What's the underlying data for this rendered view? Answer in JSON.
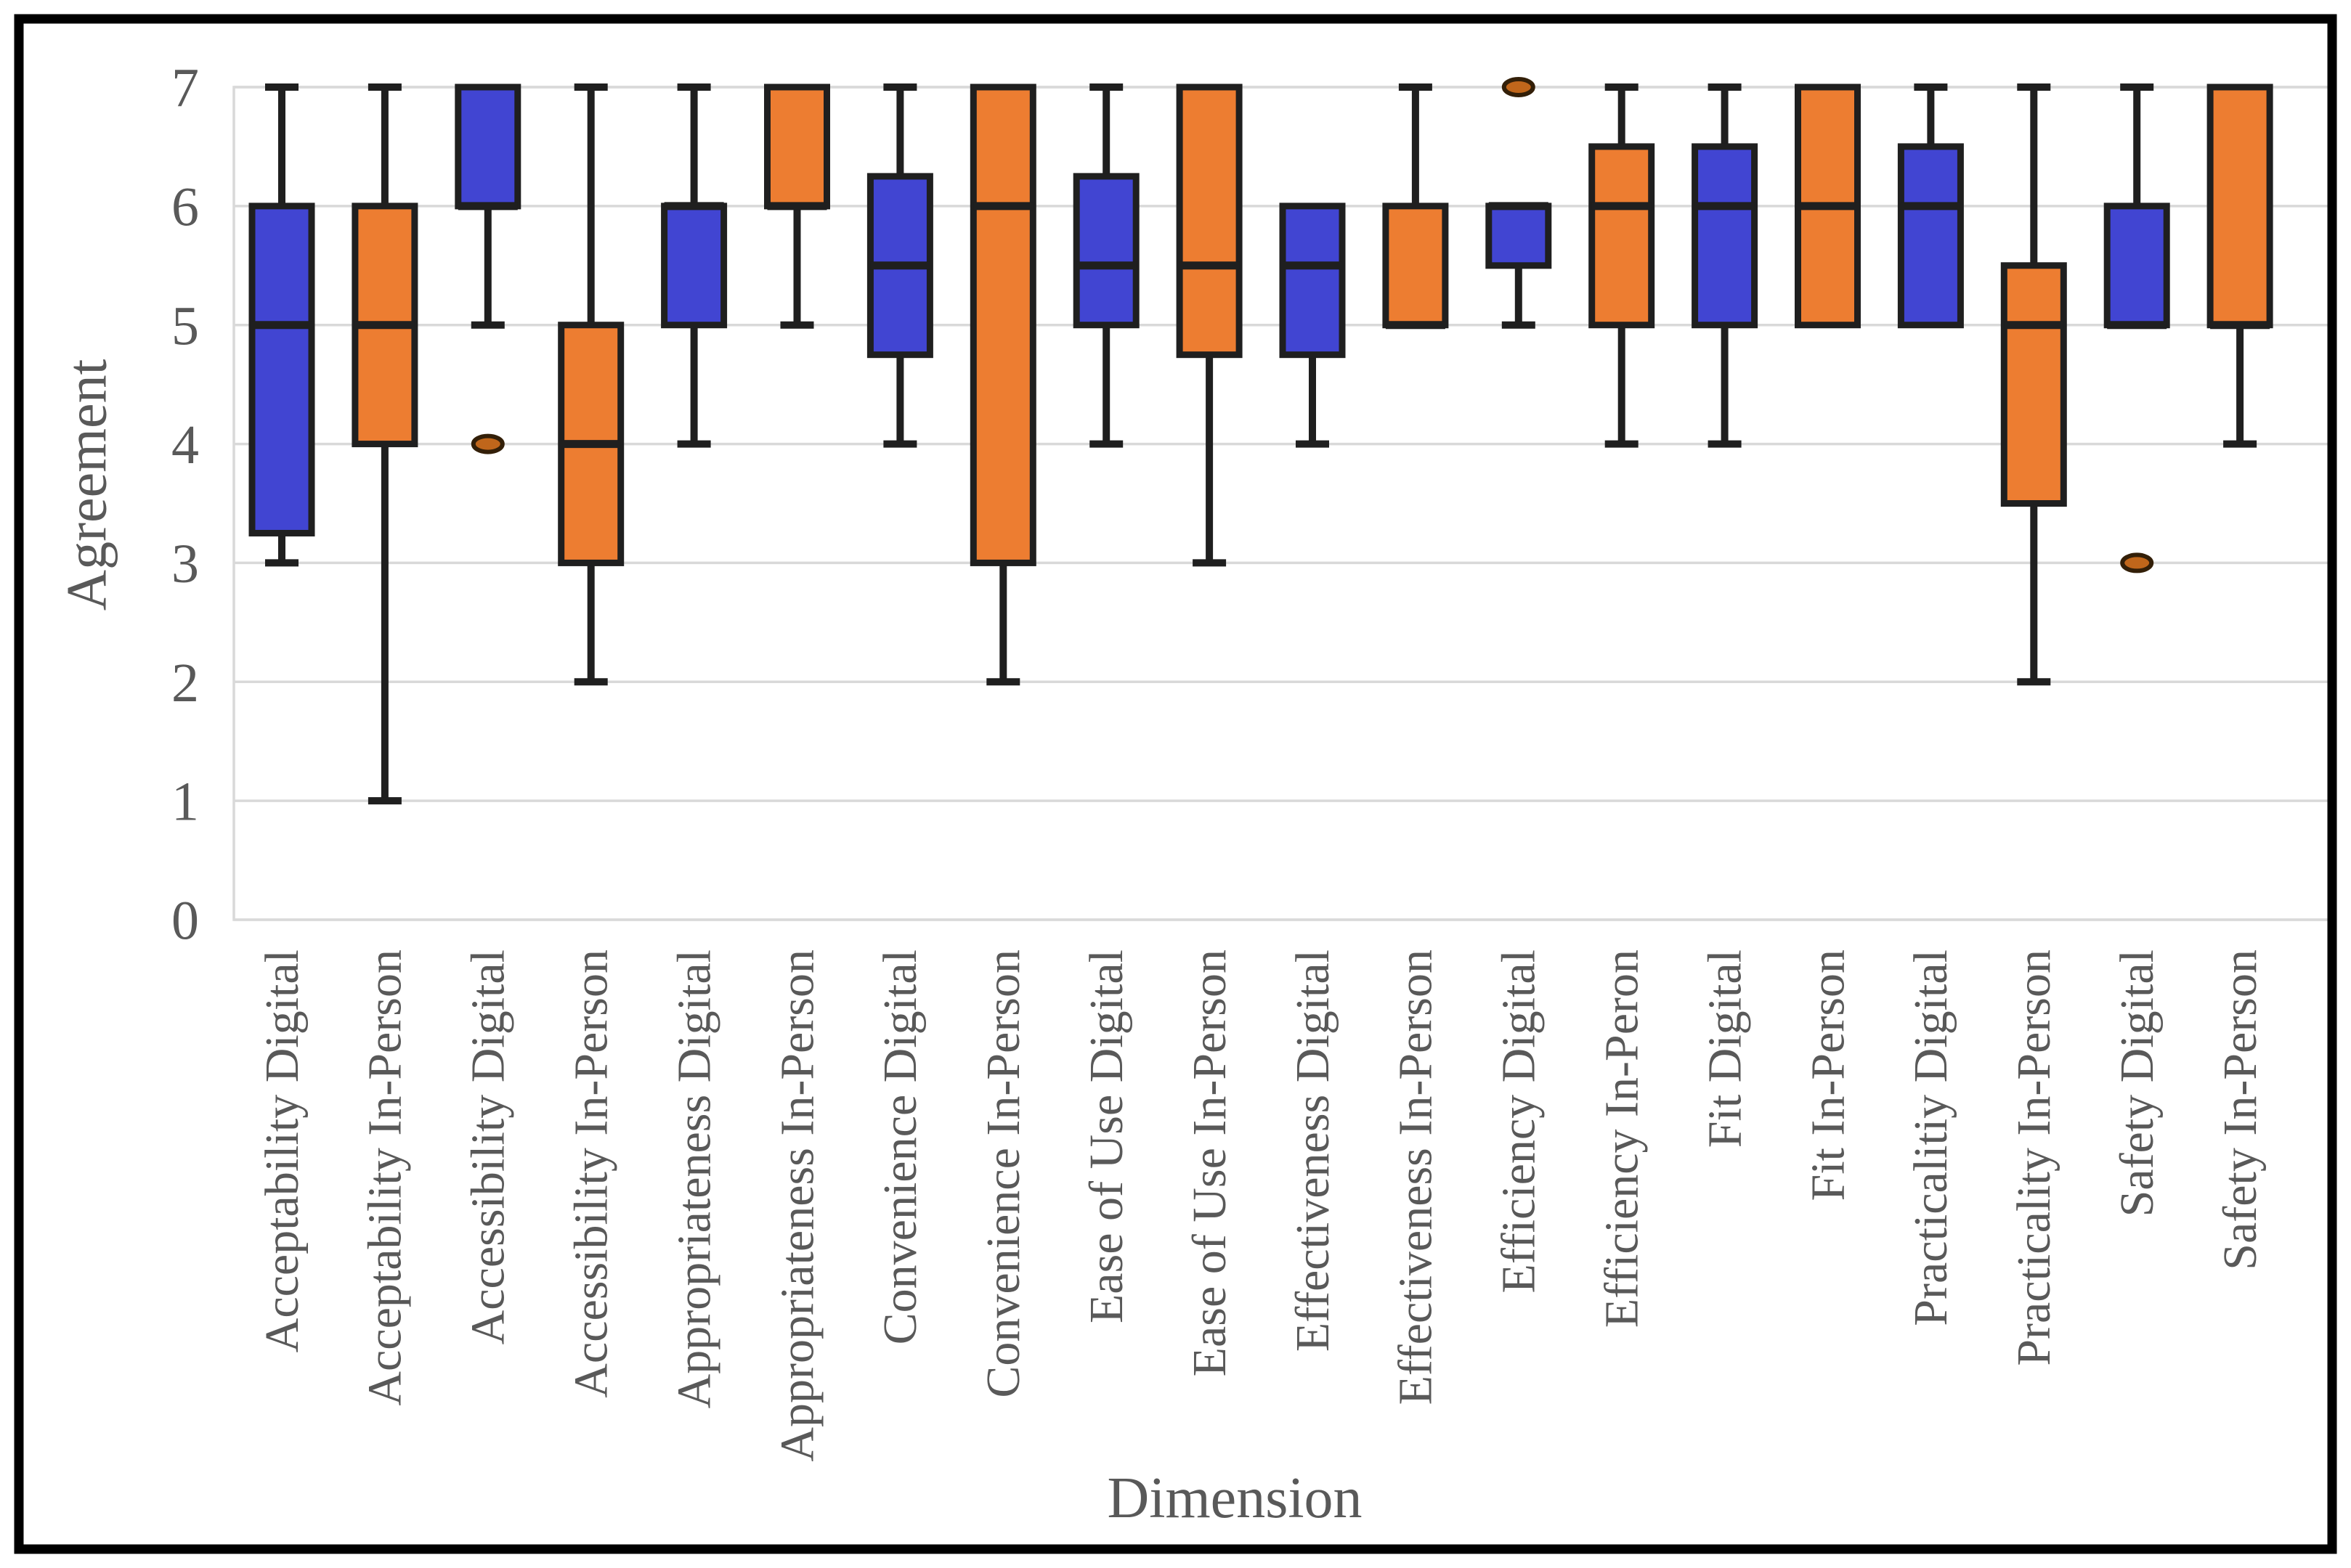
{
  "figure": {
    "background": "#ffffff",
    "frame_color": "#000000"
  },
  "chart_data": {
    "type": "box",
    "title": "",
    "xlabel": "Dimension",
    "ylabel": "Agreement",
    "ylim": [
      0,
      7
    ],
    "yticks": [
      0,
      1,
      2,
      3,
      4,
      5,
      6,
      7
    ],
    "grid": true,
    "legend_position": "none",
    "colors": {
      "digital_fill": "#4145d2",
      "in_person_fill": "#ed7d31",
      "box_stroke": "#1f1f1f",
      "gridline": "#d9d9d9",
      "axis_text": "#595959",
      "outlier_stroke": "#331f08",
      "outlier_fill": "#c0661b"
    },
    "categories": [
      "Acceptability Digital",
      "Acceptability In-Person",
      "Accessibility Digital",
      "Accessibility In-Person",
      "Appropriateness Digital",
      "Appropriateness In-Person",
      "Convenience Digital",
      "Convenience In-Person",
      "Ease of Use Digital",
      "Ease of Use In-Person",
      "Effectiveness Digital",
      "Effectiveness In-Person",
      "Efficiency Digital",
      "Efficiency In-Peron",
      "Fit Digital",
      "Fit In-Person",
      "Practicalitiy Digital",
      "Practicality In-Person",
      "Safety Digital",
      "Safety In-Person"
    ],
    "boxes": [
      {
        "label": "Acceptability Digital",
        "group": "digital",
        "min": 3,
        "q1": 3.25,
        "median": 5,
        "q3": 6,
        "max": 7,
        "outliers": []
      },
      {
        "label": "Acceptability In-Person",
        "group": "in_person",
        "min": 1,
        "q1": 4,
        "median": 5,
        "q3": 6,
        "max": 7,
        "outliers": []
      },
      {
        "label": "Accessibility Digital",
        "group": "digital",
        "min": 5,
        "q1": 6,
        "median": 6,
        "q3": 7,
        "max": 7,
        "outliers": [
          4
        ]
      },
      {
        "label": "Accessibility In-Person",
        "group": "in_person",
        "min": 2,
        "q1": 3,
        "median": 4,
        "q3": 5,
        "max": 7,
        "outliers": []
      },
      {
        "label": "Appropriateness Digital",
        "group": "digital",
        "min": 4,
        "q1": 5,
        "median": 6,
        "q3": 6,
        "max": 7,
        "outliers": []
      },
      {
        "label": "Appropriateness In-Person",
        "group": "in_person",
        "min": 5,
        "q1": 6,
        "median": 6,
        "q3": 7,
        "max": 7,
        "outliers": []
      },
      {
        "label": "Convenience Digital",
        "group": "digital",
        "min": 4,
        "q1": 4.75,
        "median": 5.5,
        "q3": 6.25,
        "max": 7,
        "outliers": []
      },
      {
        "label": "Convenience In-Person",
        "group": "in_person",
        "min": 2,
        "q1": 3,
        "median": 6,
        "q3": 7,
        "max": 7,
        "outliers": []
      },
      {
        "label": "Ease of Use Digital",
        "group": "digital",
        "min": 4,
        "q1": 5,
        "median": 5.5,
        "q3": 6.25,
        "max": 7,
        "outliers": []
      },
      {
        "label": "Ease of Use In-Person",
        "group": "in_person",
        "min": 3,
        "q1": 4.75,
        "median": 5.5,
        "q3": 7,
        "max": 7,
        "outliers": []
      },
      {
        "label": "Effectiveness Digital",
        "group": "digital",
        "min": 4,
        "q1": 4.75,
        "median": 5.5,
        "q3": 6,
        "max": 6,
        "outliers": []
      },
      {
        "label": "Effectiveness In-Person",
        "group": "in_person",
        "min": 5,
        "q1": 5,
        "median": 5,
        "q3": 6,
        "max": 7,
        "outliers": []
      },
      {
        "label": "Efficiency Digital",
        "group": "digital",
        "min": 5,
        "q1": 5.5,
        "median": 6,
        "q3": 6,
        "max": 6,
        "outliers": [
          7
        ]
      },
      {
        "label": "Efficiency In-Peron",
        "group": "in_person",
        "min": 4,
        "q1": 5,
        "median": 6,
        "q3": 6.5,
        "max": 7,
        "outliers": []
      },
      {
        "label": "Fit Digital",
        "group": "digital",
        "min": 4,
        "q1": 5,
        "median": 6,
        "q3": 6.5,
        "max": 7,
        "outliers": []
      },
      {
        "label": "Fit In-Person",
        "group": "in_person",
        "min": 5,
        "q1": 5,
        "median": 6,
        "q3": 7,
        "max": 7,
        "outliers": []
      },
      {
        "label": "Practicalitiy Digital",
        "group": "digital",
        "min": 5,
        "q1": 5,
        "median": 6,
        "q3": 6.5,
        "max": 7,
        "outliers": []
      },
      {
        "label": "Practicality In-Person",
        "group": "in_person",
        "min": 2,
        "q1": 3.5,
        "median": 5,
        "q3": 5.5,
        "max": 7,
        "outliers": []
      },
      {
        "label": "Safety Digital",
        "group": "digital",
        "min": 5,
        "q1": 5,
        "median": 5,
        "q3": 6,
        "max": 7,
        "outliers": [
          3
        ]
      },
      {
        "label": "Safety In-Person",
        "group": "in_person",
        "min": 4,
        "q1": 5,
        "median": 5,
        "q3": 7,
        "max": 7,
        "outliers": []
      }
    ]
  }
}
